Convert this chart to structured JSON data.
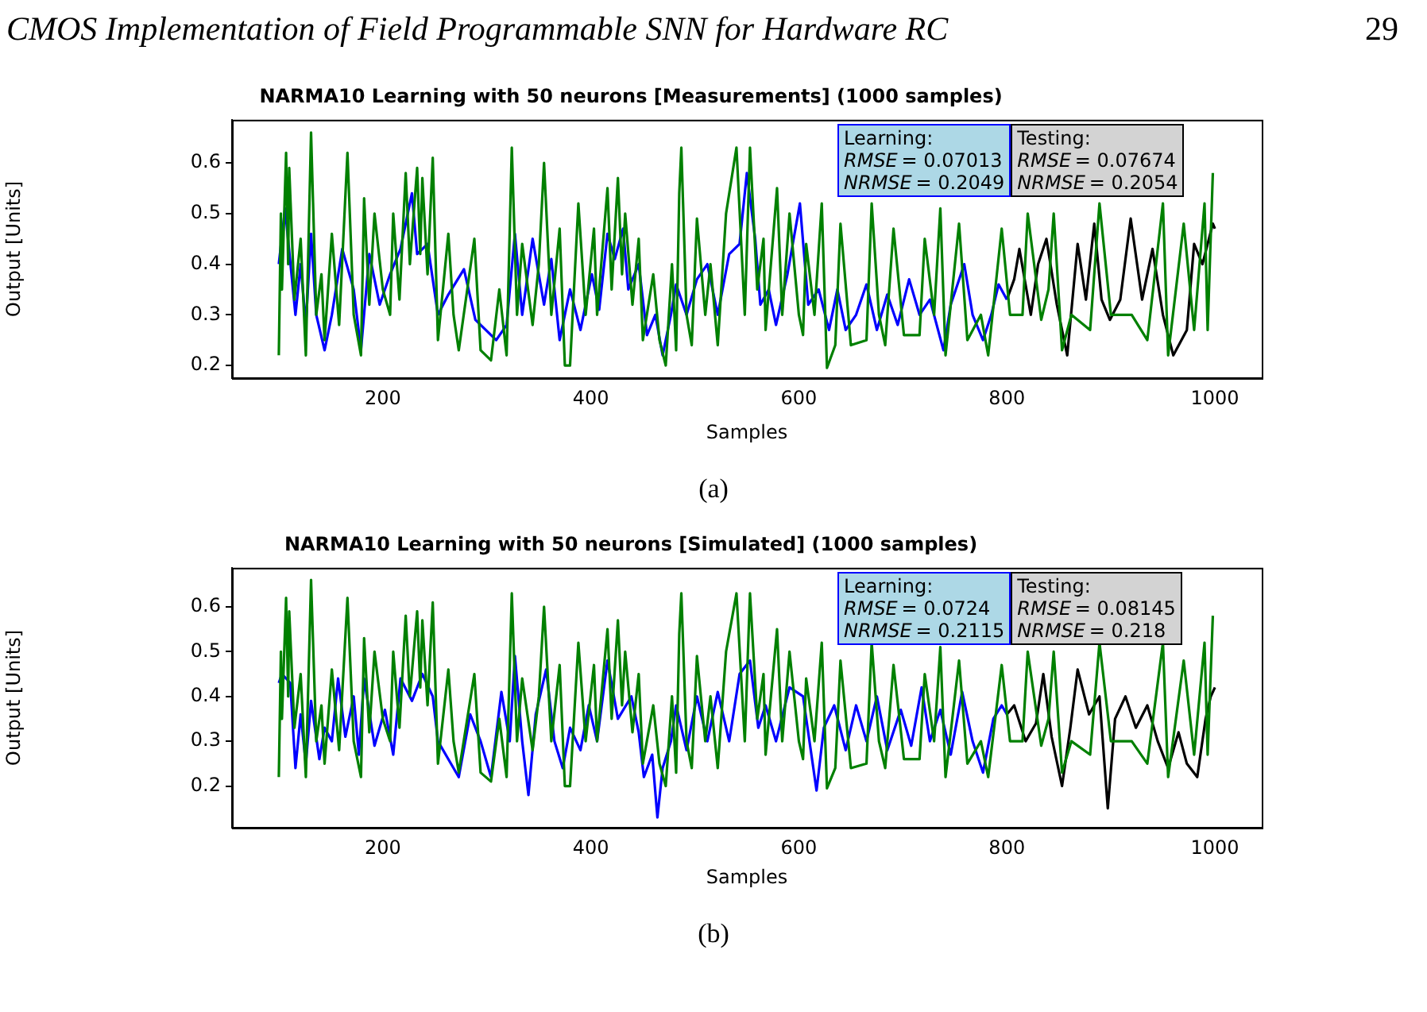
{
  "chart_data": [
    {
      "type": "line",
      "title": "NARMA10 Learning with 50 neurons [Measurements] (1000 samples)",
      "xlabel": "Samples",
      "ylabel": "Output [Units]",
      "xlim": [
        55,
        1045
      ],
      "ylim": [
        0.175,
        0.685
      ],
      "xticks": [
        200,
        400,
        600,
        800,
        1000
      ],
      "yticks": [
        0.2,
        0.3,
        0.4,
        0.5,
        0.6
      ],
      "marker": "none",
      "legend": false,
      "grid": false,
      "annotations": [
        "CMOS Implementation of Field Programmable SNN for Hardware RC",
        "29",
        "Learning:\nRMSE = 0.07013\nNRMSE = 0.2049",
        "Testing:\nRMSE = 0.07674\nNRMSE = 0.2054",
        "(a)"
      ],
      "series": [
        {
          "color": "#008000",
          "x": [
            100,
            102,
            103,
            107,
            109,
            110,
            115,
            121,
            126,
            131,
            136,
            141,
            144,
            151,
            158,
            166,
            172,
            179,
            182,
            187,
            192,
            200,
            207,
            210,
            216,
            222,
            226,
            233,
            236,
            238,
            243,
            248,
            253,
            263,
            268,
            273,
            288,
            294,
            304,
            312,
            319,
            324,
            329,
            334,
            344,
            350,
            355,
            362,
            370,
            375,
            380,
            388,
            395,
            403,
            406,
            416,
            420,
            426,
            430,
            433,
            440,
            446,
            450,
            460,
            466,
            472,
            478,
            482,
            485,
            487,
            492,
            497,
            502,
            510,
            515,
            522,
            530,
            540,
            548,
            553,
            560,
            566,
            568,
            579,
            584,
            591,
            600,
            604,
            607,
            615,
            622,
            627,
            635,
            640,
            650,
            655,
            665,
            670,
            677,
            683,
            691,
            701,
            706,
            716,
            721,
            730,
            736,
            741,
            754,
            762,
            767,
            775,
            782,
            795,
            803,
            808,
            815,
            820,
            828,
            833,
            840,
            845,
            853,
            858,
            862,
            869,
            880,
            889,
            900,
            909,
            920,
            930,
            935,
            950,
            955,
            970,
            980,
            990,
            993,
            998
          ],
          "values": [
            0.22,
            0.5,
            0.35,
            0.62,
            0.4,
            0.59,
            0.33,
            0.45,
            0.22,
            0.66,
            0.3,
            0.38,
            0.25,
            0.46,
            0.28,
            0.62,
            0.3,
            0.22,
            0.53,
            0.32,
            0.5,
            0.35,
            0.3,
            0.5,
            0.33,
            0.58,
            0.4,
            0.59,
            0.42,
            0.57,
            0.38,
            0.61,
            0.25,
            0.46,
            0.3,
            0.23,
            0.45,
            0.23,
            0.21,
            0.35,
            0.22,
            0.63,
            0.3,
            0.44,
            0.28,
            0.4,
            0.6,
            0.3,
            0.47,
            0.2,
            0.2,
            0.52,
            0.3,
            0.47,
            0.3,
            0.55,
            0.35,
            0.57,
            0.38,
            0.5,
            0.32,
            0.45,
            0.25,
            0.38,
            0.25,
            0.2,
            0.4,
            0.23,
            0.54,
            0.63,
            0.3,
            0.24,
            0.49,
            0.3,
            0.4,
            0.24,
            0.5,
            0.63,
            0.3,
            0.63,
            0.35,
            0.45,
            0.27,
            0.55,
            0.3,
            0.5,
            0.3,
            0.26,
            0.44,
            0.3,
            0.52,
            0.195,
            0.24,
            0.48,
            0.24,
            null,
            0.25,
            0.52,
            0.3,
            0.24,
            0.47,
            0.26,
            null,
            0.26,
            0.45,
            0.3,
            0.51,
            0.22,
            0.48,
            0.25,
            null,
            0.3,
            0.22,
            0.47,
            0.3,
            null,
            0.3,
            0.5,
            null,
            0.29,
            0.35,
            0.5,
            0.23,
            null,
            0.3,
            null,
            0.27,
            0.52,
            0.3,
            null,
            0.3,
            null,
            0.25,
            0.52,
            0.22,
            0.48,
            0.27,
            0.52,
            0.27,
            0.58
          ]
        },
        {
          "color": "#0000ff",
          "x": [
            100,
            106,
            116,
            121,
            126,
            131,
            136,
            144,
            151,
            161,
            172,
            179,
            187,
            197,
            207,
            217,
            228,
            233,
            243,
            253,
            263,
            278,
            289,
            299,
            309,
            319,
            327,
            334,
            344,
            355,
            362,
            370,
            380,
            390,
            401,
            408,
            416,
            423,
            431,
            436,
            446,
            454,
            462,
            469,
            477,
            482,
            492,
            502,
            512,
            522,
            533,
            543,
            550,
            558,
            563,
            571,
            578,
            589,
            601,
            609,
            619,
            629,
            637,
            645,
            655,
            665,
            675,
            685,
            695,
            706,
            716,
            726,
            739,
            746,
            759,
            767,
            777,
            785,
            792,
            800
          ],
          "values": [
            0.4,
            0.51,
            0.3,
            0.4,
            0.28,
            0.46,
            0.3,
            0.23,
            0.3,
            0.43,
            0.35,
            0.23,
            0.42,
            0.32,
            0.38,
            0.43,
            0.54,
            0.42,
            0.44,
            0.3,
            0.34,
            0.39,
            0.29,
            0.27,
            0.25,
            0.28,
            0.46,
            0.3,
            0.45,
            0.32,
            0.41,
            0.25,
            0.35,
            0.27,
            0.38,
            0.31,
            0.46,
            0.41,
            0.47,
            0.35,
            0.4,
            0.26,
            0.3,
            0.22,
            0.3,
            0.36,
            0.3,
            0.37,
            0.4,
            0.3,
            0.42,
            0.44,
            0.58,
            0.45,
            0.32,
            0.35,
            0.28,
            0.38,
            0.52,
            0.32,
            0.35,
            0.27,
            0.35,
            0.27,
            0.3,
            0.36,
            0.27,
            0.34,
            0.28,
            0.37,
            0.3,
            0.33,
            0.23,
            0.32,
            0.4,
            0.3,
            0.25,
            0.3,
            0.36,
            0.33
          ]
        },
        {
          "color": "#000000",
          "x": [
            800,
            807,
            812,
            823,
            830,
            838,
            848,
            858,
            868,
            876,
            884,
            891,
            899,
            909,
            919,
            930,
            940,
            950,
            960,
            973,
            980,
            988,
            998,
            1000
          ],
          "values": [
            0.33,
            0.37,
            0.43,
            0.3,
            0.4,
            0.45,
            0.32,
            0.22,
            0.44,
            0.33,
            0.48,
            0.33,
            0.29,
            0.33,
            0.49,
            0.33,
            0.43,
            0.3,
            0.22,
            0.27,
            0.44,
            0.4,
            0.48,
            0.47
          ]
        }
      ]
    },
    {
      "type": "line",
      "title": "NARMA10 Learning with 50 neurons [Simulated] (1000 samples)",
      "xlabel": "Samples",
      "ylabel": "Output [Units]",
      "xlim": [
        55,
        1045
      ],
      "ylim": [
        0.107,
        0.687
      ],
      "xticks": [
        200,
        400,
        600,
        800,
        1000
      ],
      "yticks": [
        0.2,
        0.3,
        0.4,
        0.5,
        0.6
      ],
      "marker": "none",
      "legend": false,
      "grid": false,
      "annotations": [
        "Learning:\nRMSE = 0.0724\nNRMSE = 0.2115",
        "Testing:\nRMSE = 0.08145\nNRMSE = 0.218",
        "(b)"
      ],
      "series": [
        {
          "color": "#008000",
          "x": [
            100,
            102,
            103,
            107,
            109,
            110,
            115,
            121,
            126,
            131,
            136,
            141,
            144,
            151,
            158,
            166,
            172,
            179,
            182,
            187,
            192,
            200,
            207,
            210,
            216,
            222,
            226,
            233,
            236,
            238,
            243,
            248,
            253,
            263,
            268,
            273,
            288,
            294,
            304,
            312,
            319,
            324,
            329,
            334,
            344,
            350,
            355,
            362,
            370,
            375,
            380,
            388,
            395,
            403,
            406,
            416,
            420,
            426,
            430,
            433,
            440,
            446,
            450,
            460,
            466,
            472,
            478,
            482,
            485,
            487,
            492,
            497,
            502,
            510,
            515,
            522,
            530,
            540,
            548,
            553,
            560,
            566,
            568,
            579,
            584,
            591,
            600,
            604,
            607,
            615,
            622,
            627,
            635,
            640,
            650,
            655,
            665,
            670,
            677,
            683,
            691,
            701,
            706,
            716,
            721,
            730,
            736,
            741,
            754,
            762,
            767,
            775,
            782,
            795,
            803,
            808,
            815,
            820,
            828,
            833,
            840,
            845,
            853,
            858,
            862,
            869,
            880,
            889,
            900,
            909,
            920,
            930,
            935,
            950,
            955,
            970,
            980,
            990,
            993,
            998
          ],
          "values": [
            0.22,
            0.5,
            0.35,
            0.62,
            0.4,
            0.59,
            0.33,
            0.45,
            0.22,
            0.66,
            0.3,
            0.38,
            0.25,
            0.46,
            0.28,
            0.62,
            0.3,
            0.22,
            0.53,
            0.32,
            0.5,
            0.35,
            0.3,
            0.5,
            0.33,
            0.58,
            0.4,
            0.59,
            0.42,
            0.57,
            0.38,
            0.61,
            0.25,
            0.46,
            0.3,
            0.23,
            0.45,
            0.23,
            0.21,
            0.35,
            0.22,
            0.63,
            0.3,
            0.44,
            0.28,
            0.4,
            0.6,
            0.3,
            0.47,
            0.2,
            0.2,
            0.52,
            0.3,
            0.47,
            0.3,
            0.55,
            0.35,
            0.57,
            0.38,
            0.5,
            0.32,
            0.45,
            0.25,
            0.38,
            0.25,
            0.2,
            0.4,
            0.23,
            0.54,
            0.63,
            0.3,
            0.24,
            0.49,
            0.3,
            0.4,
            0.24,
            0.5,
            0.63,
            0.3,
            0.63,
            0.35,
            0.45,
            0.27,
            0.55,
            0.3,
            0.5,
            0.3,
            0.26,
            0.44,
            0.3,
            0.52,
            0.195,
            0.24,
            0.48,
            0.24,
            null,
            0.25,
            0.52,
            0.3,
            0.24,
            0.47,
            0.26,
            null,
            0.26,
            0.45,
            0.3,
            0.51,
            0.22,
            0.48,
            0.25,
            null,
            0.3,
            0.22,
            0.47,
            0.3,
            null,
            0.3,
            0.5,
            null,
            0.29,
            0.35,
            0.5,
            0.23,
            null,
            0.3,
            null,
            0.27,
            0.52,
            0.3,
            null,
            0.3,
            null,
            0.25,
            0.52,
            0.22,
            0.48,
            0.27,
            0.52,
            0.27,
            0.58
          ]
        },
        {
          "color": "#0000ff",
          "x": [
            100,
            103,
            111,
            116,
            121,
            126,
            131,
            139,
            144,
            151,
            157,
            164,
            172,
            177,
            182,
            192,
            202,
            210,
            217,
            228,
            238,
            248,
            253,
            263,
            273,
            284,
            294,
            304,
            314,
            322,
            327,
            334,
            340,
            347,
            357,
            365,
            373,
            380,
            390,
            398,
            406,
            416,
            426,
            439,
            446,
            451,
            459,
            464,
            469,
            477,
            482,
            492,
            502,
            512,
            522,
            533,
            543,
            553,
            561,
            568,
            578,
            591,
            604,
            617,
            624,
            634,
            645,
            655,
            665,
            675,
            685,
            698,
            708,
            718,
            726,
            736,
            746,
            757,
            767,
            777,
            787,
            795,
            800
          ],
          "values": [
            0.43,
            0.45,
            0.43,
            0.24,
            0.36,
            0.25,
            0.39,
            0.26,
            0.33,
            0.3,
            0.44,
            0.31,
            0.4,
            0.27,
            0.44,
            0.29,
            0.37,
            0.27,
            0.44,
            0.39,
            0.45,
            0.4,
            0.3,
            0.26,
            0.22,
            0.36,
            0.3,
            0.22,
            0.41,
            0.3,
            0.49,
            0.3,
            0.18,
            0.36,
            0.46,
            0.3,
            0.24,
            0.33,
            0.28,
            0.38,
            0.3,
            0.48,
            0.35,
            0.4,
            0.32,
            0.22,
            0.27,
            0.13,
            0.24,
            0.3,
            0.38,
            0.28,
            0.4,
            0.3,
            0.41,
            0.3,
            0.45,
            0.48,
            0.33,
            0.38,
            0.3,
            0.42,
            0.4,
            0.19,
            0.33,
            0.38,
            0.28,
            0.38,
            0.3,
            0.4,
            0.28,
            0.37,
            0.29,
            0.42,
            0.3,
            0.37,
            0.27,
            0.41,
            0.3,
            0.23,
            0.35,
            0.38,
            0.36
          ]
        },
        {
          "color": "#000000",
          "x": [
            800,
            807,
            818,
            828,
            835,
            843,
            853,
            861,
            868,
            879,
            889,
            897,
            904,
            914,
            924,
            935,
            945,
            955,
            965,
            973,
            983,
            991,
            996,
            1000
          ],
          "values": [
            0.36,
            0.38,
            0.3,
            0.34,
            0.45,
            0.31,
            0.2,
            0.33,
            0.46,
            0.36,
            0.4,
            0.15,
            0.35,
            0.4,
            0.33,
            0.38,
            0.3,
            0.24,
            0.32,
            0.25,
            0.22,
            0.35,
            0.4,
            0.42
          ]
        }
      ]
    }
  ]
}
